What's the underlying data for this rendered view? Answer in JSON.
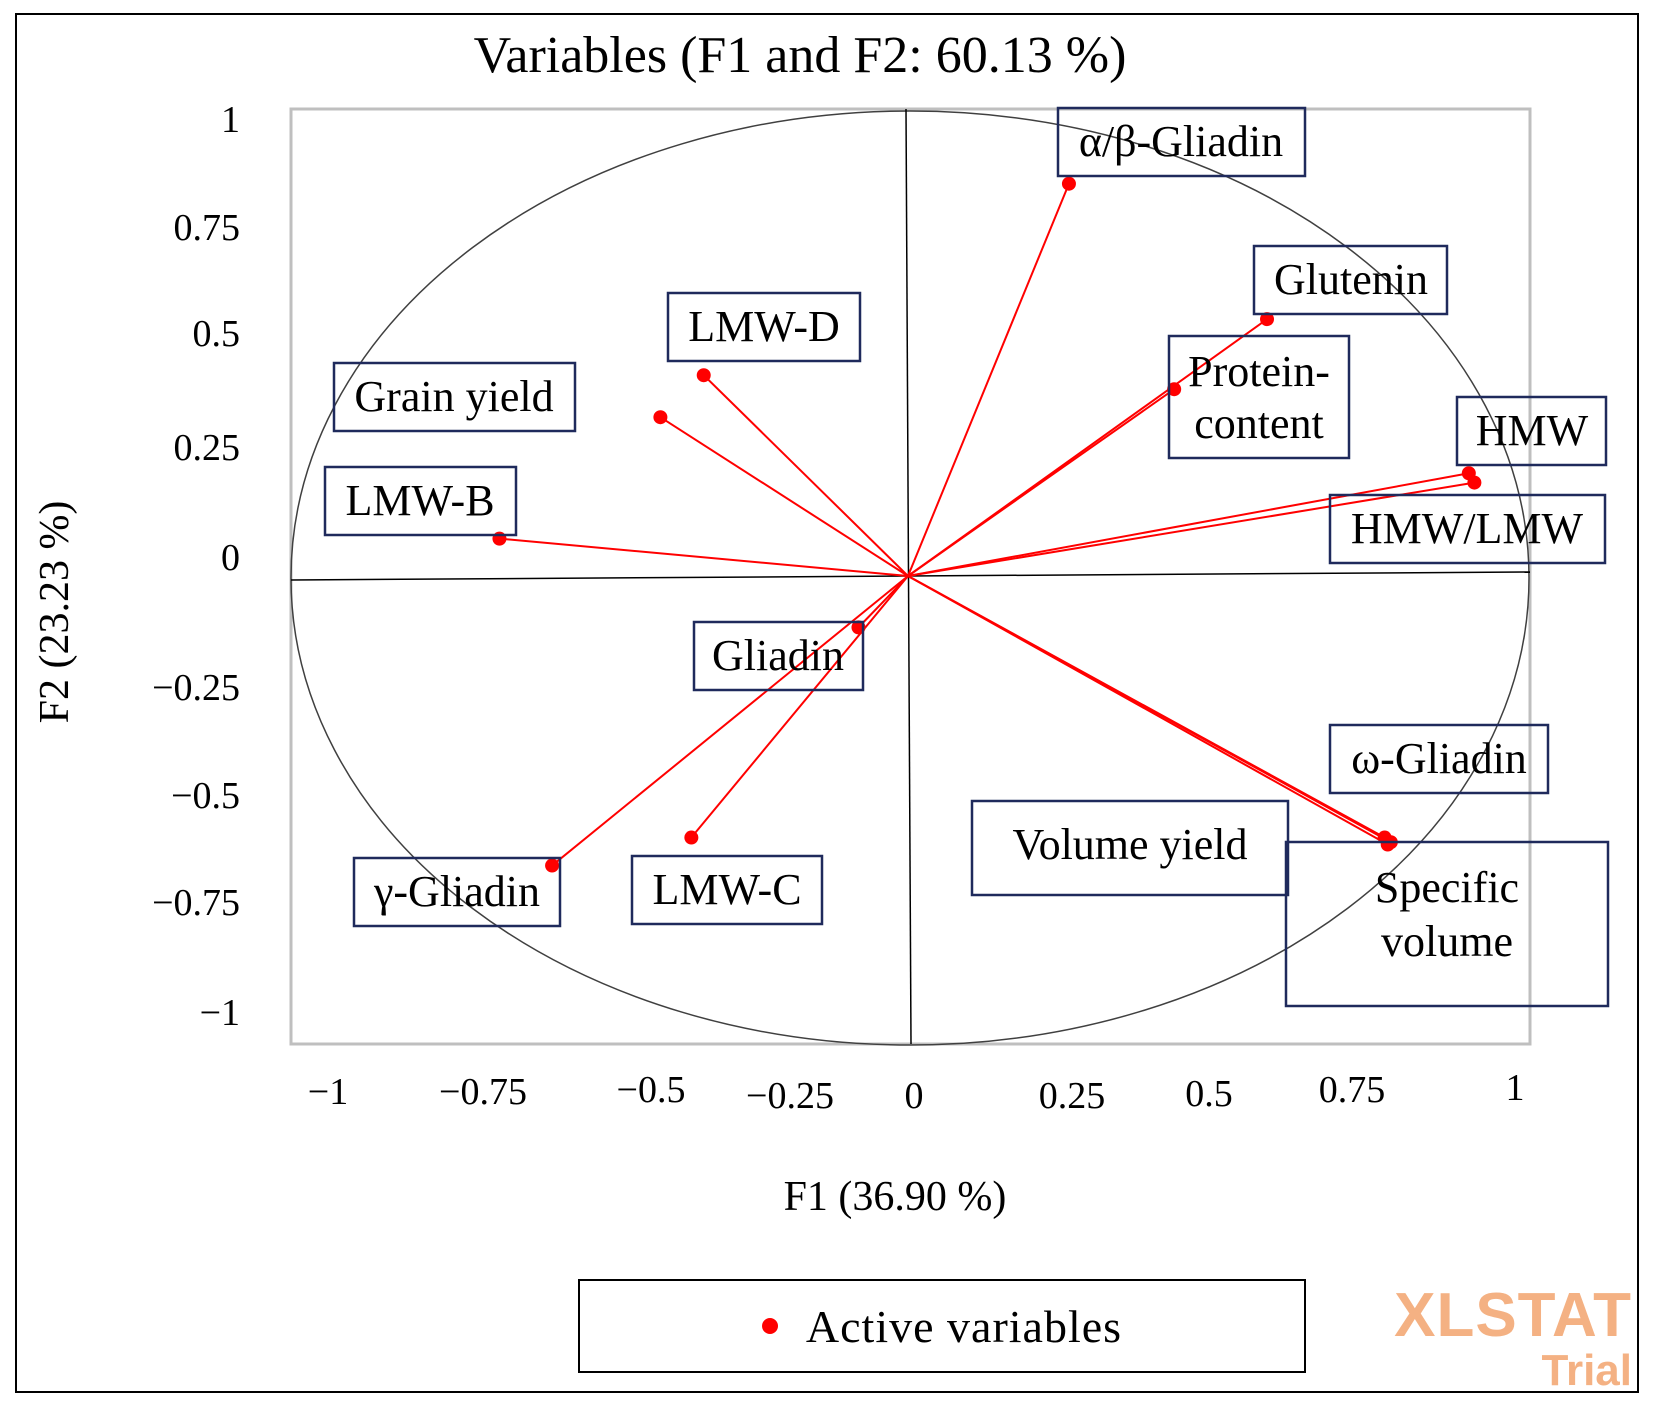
{
  "chart_data": {
    "type": "scatter",
    "subtype": "pca-correlation-circle",
    "title": "Variables (F1 and F2: 60.13 %)",
    "xlabel": "F1 (36.90 %)",
    "ylabel": "F2 (23.23 %)",
    "xlim": [
      -1,
      1
    ],
    "ylim": [
      -1,
      1
    ],
    "x_ticks": [
      "−1",
      "−0.75",
      "−0.5",
      "−0.25",
      "0",
      "0.25",
      "0.5",
      "0.75",
      "1"
    ],
    "y_ticks": [
      "1",
      "0.75",
      "0.5",
      "0.25",
      "0",
      "−0.25",
      "−0.5",
      "−0.75",
      "−1"
    ],
    "legend": "Active  variables",
    "series": [
      {
        "name": "Active variables",
        "color": "#ff0000",
        "points": [
          {
            "label": "α/β-Gliadin",
            "x": 0.26,
            "y": 0.84
          },
          {
            "label": "Glutenin",
            "x": 0.58,
            "y": 0.55
          },
          {
            "label": "Protein-content",
            "x": 0.43,
            "y": 0.4
          },
          {
            "label": "HMW",
            "x": 0.906,
            "y": 0.22
          },
          {
            "label": "HMW/LMW",
            "x": 0.915,
            "y": 0.2
          },
          {
            "label": "LMW-D",
            "x": -0.33,
            "y": 0.43
          },
          {
            "label": "Grain yield",
            "x": -0.4,
            "y": 0.34
          },
          {
            "label": "LMW-B",
            "x": -0.66,
            "y": 0.08
          },
          {
            "label": "Gliadin",
            "x": -0.08,
            "y": -0.11
          },
          {
            "label": "ω-Gliadin",
            "x": 0.78,
            "y": -0.57
          },
          {
            "label": "Volume yield",
            "x": 0.77,
            "y": -0.56
          },
          {
            "label": "Specific volume",
            "x": 0.775,
            "y": -0.575
          },
          {
            "label": "γ-Gliadin",
            "x": -0.575,
            "y": -0.62
          },
          {
            "label": "LMW-C",
            "x": -0.35,
            "y": -0.56
          }
        ]
      }
    ]
  },
  "watermark": {
    "main": "XLSTAT",
    "sub": "Trial"
  }
}
